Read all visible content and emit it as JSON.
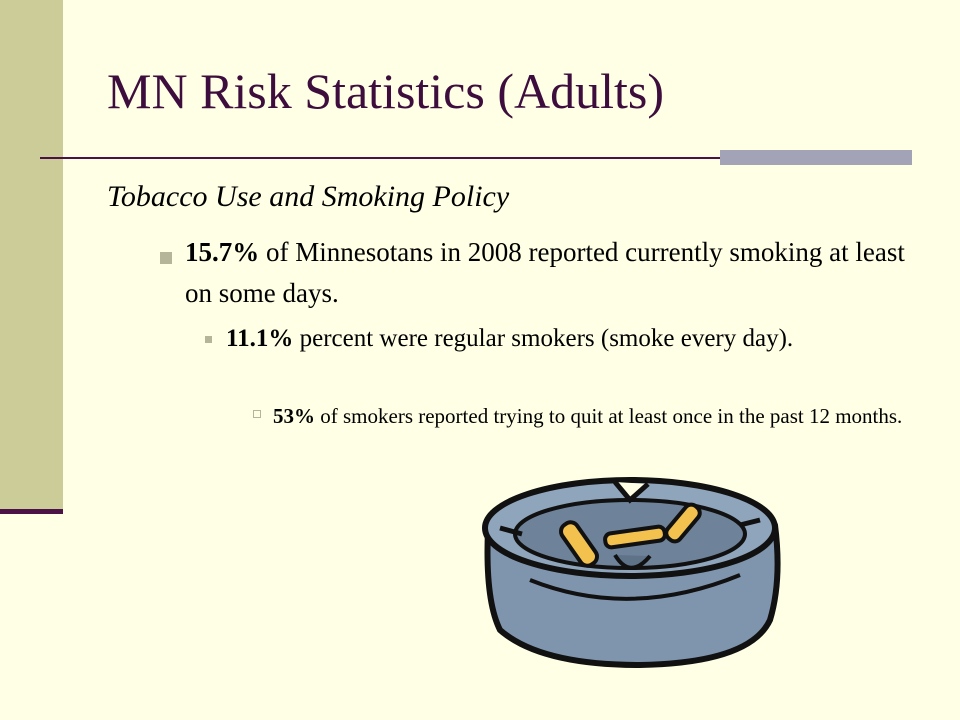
{
  "header": {
    "title": "MN Risk Statistics (Adults)"
  },
  "subtitle": "Tobacco Use and Smoking Policy",
  "bullets": [
    {
      "bold": "15.7%",
      "text": "of Minnesotans in 2008 reported currently smoking at least on some days."
    },
    {
      "bold": "11.1%",
      "text": "percent were regular smokers (smoke every day)."
    },
    {
      "bold": "53%",
      "text": "of smokers reported trying to quit at least once in the past 12 months."
    }
  ]
}
